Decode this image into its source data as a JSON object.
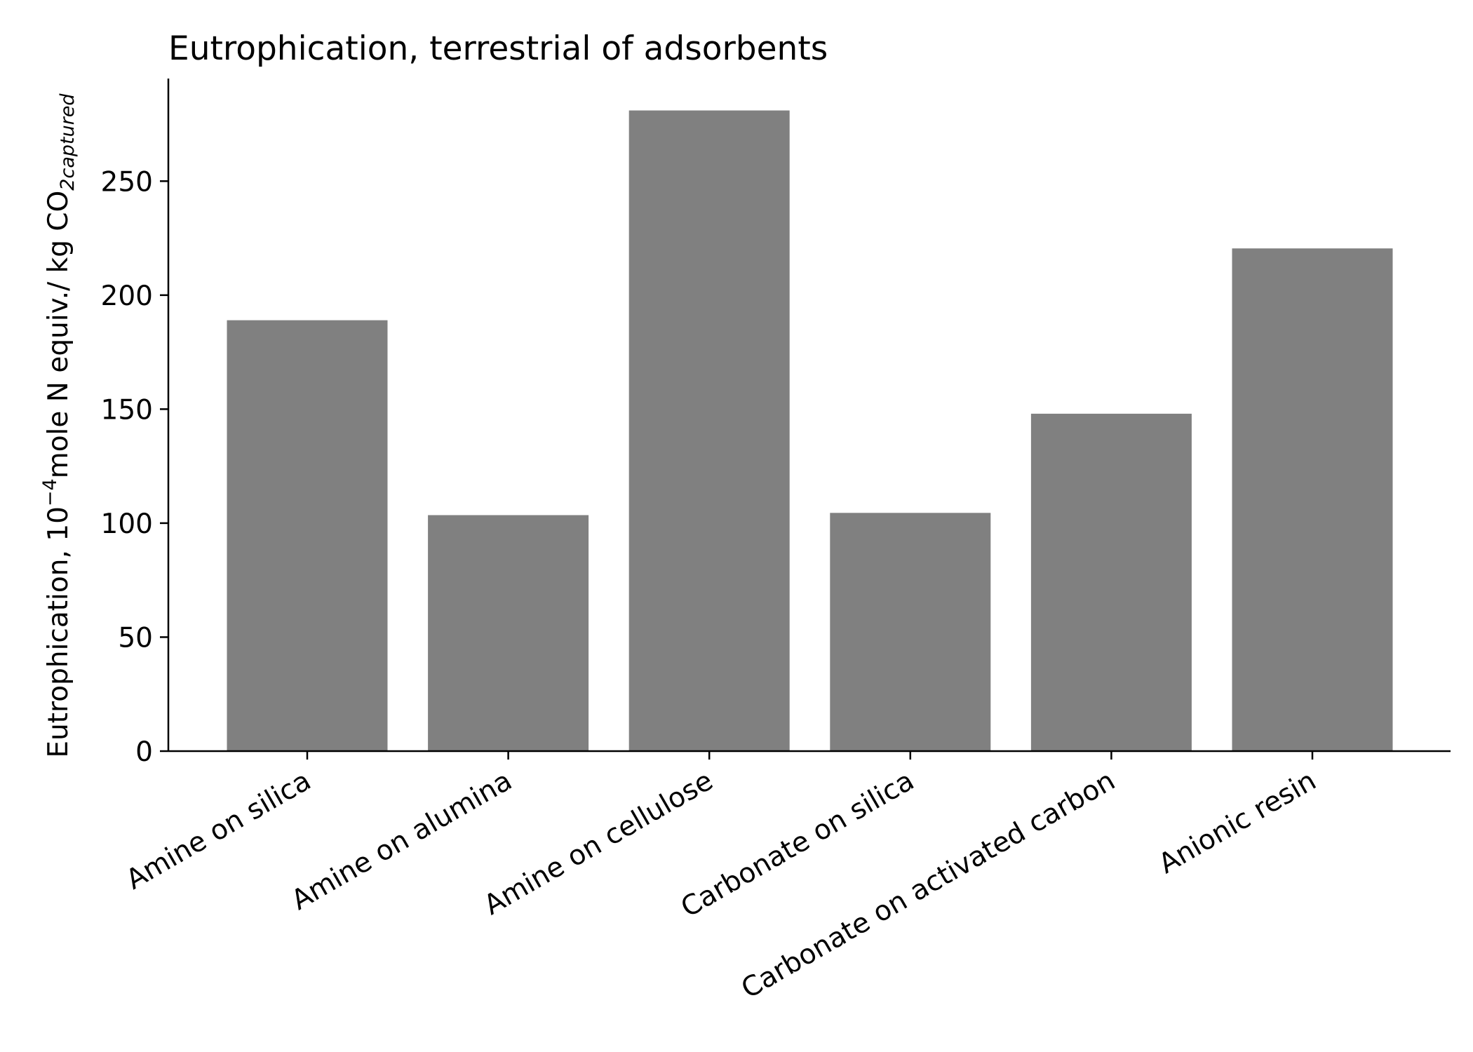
{
  "chart_data": {
    "type": "bar",
    "title": "Eutrophication, terrestrial of adsorbents",
    "xlabel": "",
    "ylabel": {
      "main": "Eutrophication, 10",
      "exponent": "−4",
      "after": "mole N equiv./ kg CO",
      "subscript": "2captured"
    },
    "categories": [
      "Amine on silica",
      "Amine on alumina",
      "Amine on cellulose",
      "Carbonate on silica",
      "Carbonate on activated carbon",
      "Anionic resin"
    ],
    "values": [
      189,
      103.5,
      281,
      104.5,
      148,
      220.5
    ],
    "ylim": [
      0,
      295
    ],
    "yticks": [
      0,
      50,
      100,
      150,
      200,
      250
    ],
    "bar_color": "#808080",
    "grid": false,
    "legend": "none"
  }
}
